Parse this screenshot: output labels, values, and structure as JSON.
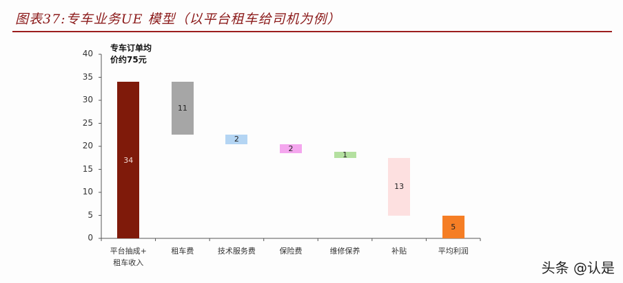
{
  "header": {
    "title": "图表37:专车业务UE 模型（以平台租车给司机为例）",
    "title_color": "#8b1a1a"
  },
  "annotation": {
    "line1": "专车订单均",
    "line2": "价约75元"
  },
  "watermark": "头条 @认是",
  "chart_data": {
    "type": "bar",
    "subtype": "waterfall",
    "title": "专车业务UE 模型（以平台租车给司机为例）",
    "xlabel": "",
    "ylabel": "",
    "ylim": [
      0,
      40
    ],
    "yticks": [
      0,
      5,
      10,
      15,
      20,
      25,
      30,
      35,
      40
    ],
    "grid": false,
    "legend": null,
    "categories": [
      "平台抽成+租车收入",
      "租车费",
      "技术服务费",
      "保险费",
      "维修保养",
      "补贴",
      "平均利润"
    ],
    "values": [
      34,
      11,
      2,
      2,
      1,
      13,
      5
    ],
    "bar_ranges": [
      [
        0,
        34
      ],
      [
        22.5,
        34
      ],
      [
        20.5,
        22.5
      ],
      [
        18.5,
        20.5
      ],
      [
        17.5,
        18.8
      ],
      [
        5,
        17.5
      ],
      [
        0,
        5
      ]
    ],
    "value_labels": [
      "34",
      "11",
      "2",
      "2",
      "1",
      "13",
      "5"
    ],
    "colors": [
      "#7f1a0a",
      "#a6a6a6",
      "#b4d5f3",
      "#f4a6ee",
      "#b4e0a0",
      "#fde0e0",
      "#f57e25"
    ]
  }
}
